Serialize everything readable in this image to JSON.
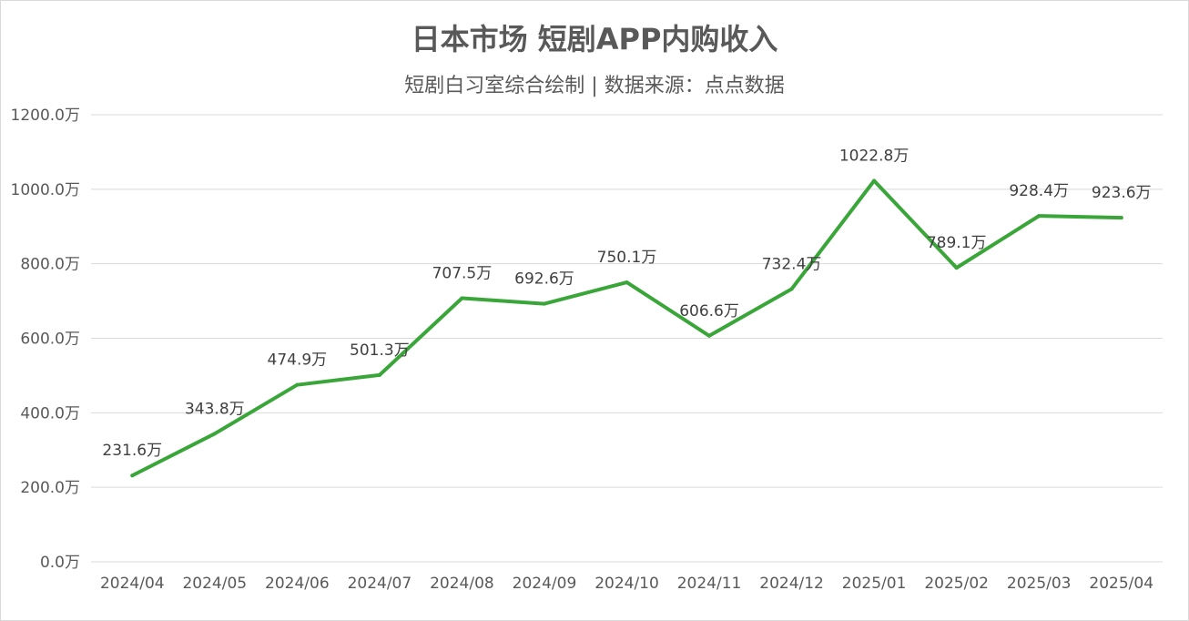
{
  "chart_data": {
    "type": "line",
    "title": "日本市场 短剧APP内购收入",
    "subtitle": "短剧白习室综合绘制 | 数据来源：点点数据",
    "categories": [
      "2024/04",
      "2024/05",
      "2024/06",
      "2024/07",
      "2024/08",
      "2024/09",
      "2024/10",
      "2024/11",
      "2024/12",
      "2025/01",
      "2025/02",
      "2025/03",
      "2025/04"
    ],
    "series": [
      {
        "values": [
          231.6,
          343.8,
          474.9,
          501.3,
          707.5,
          692.6,
          750.1,
          606.6,
          732.4,
          1022.8,
          789.1,
          928.4,
          923.6
        ],
        "color": "#3aa63a"
      }
    ],
    "data_labels": [
      "231.6万",
      "343.8万",
      "474.9万",
      "501.3万",
      "707.5万",
      "692.6万",
      "750.1万",
      "606.6万",
      "732.4万",
      "1022.8万",
      "789.1万",
      "928.4万",
      "923.6万"
    ],
    "y_ticks": [
      0,
      200,
      400,
      600,
      800,
      1000,
      1200
    ],
    "y_tick_labels": [
      "0.0万",
      "200.0万",
      "400.0万",
      "600.0万",
      "800.0万",
      "1000.0万",
      "1200.0万"
    ],
    "ylim": [
      0,
      1200
    ],
    "grid": true,
    "legend": "none",
    "colors": {
      "grid": "#d9d9d9",
      "text": "#595959"
    }
  }
}
